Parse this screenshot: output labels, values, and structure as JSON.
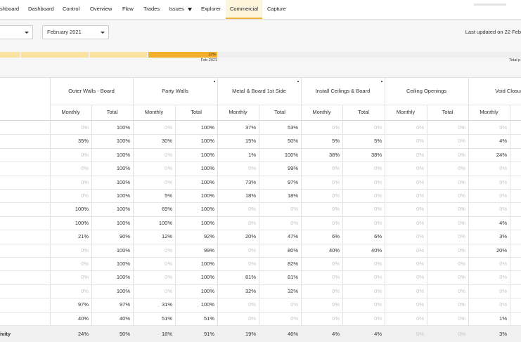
{
  "nav": {
    "items": [
      {
        "label": "shboard"
      },
      {
        "label": "Dashboard"
      },
      {
        "label": "Control"
      },
      {
        "label": "Overview"
      },
      {
        "label": "Flow"
      },
      {
        "label": "Trades"
      },
      {
        "label": "Issues",
        "dropdown": true
      },
      {
        "label": "Explorer"
      },
      {
        "label": "Commercial",
        "active": true
      },
      {
        "label": "Capture"
      }
    ]
  },
  "filters": {
    "period": "February 2021"
  },
  "last_updated": "Last updated on 22 Feb",
  "progress": {
    "marker_label": "12%",
    "period_label": "Feb 2021",
    "total_label": "Total p"
  },
  "table": {
    "groups": [
      "Outer Walls - Board",
      "Party Walls",
      "Metal & Board 1st Side",
      "Install Ceilings & Board",
      "Ceiling Openings",
      "Void Closure"
    ],
    "subheaders": [
      "Monthly",
      "Total"
    ],
    "rows": [
      [
        "0%",
        "100%",
        "0%",
        "100%",
        "37%",
        "53%",
        "0%",
        "0%",
        "0%",
        "0%",
        "0%"
      ],
      [
        "35%",
        "100%",
        "30%",
        "100%",
        "15%",
        "50%",
        "5%",
        "5%",
        "0%",
        "0%",
        "4%"
      ],
      [
        "0%",
        "100%",
        "0%",
        "100%",
        "1%",
        "100%",
        "38%",
        "38%",
        "0%",
        "0%",
        "24%"
      ],
      [
        "0%",
        "100%",
        "0%",
        "100%",
        "0%",
        "99%",
        "0%",
        "0%",
        "0%",
        "0%",
        "0%"
      ],
      [
        "0%",
        "100%",
        "0%",
        "100%",
        "73%",
        "97%",
        "0%",
        "0%",
        "0%",
        "0%",
        "0%"
      ],
      [
        "0%",
        "100%",
        "5%",
        "100%",
        "18%",
        "18%",
        "0%",
        "0%",
        "0%",
        "0%",
        "0%"
      ],
      [
        "100%",
        "100%",
        "69%",
        "100%",
        "0%",
        "0%",
        "0%",
        "0%",
        "0%",
        "0%",
        "0%"
      ],
      [
        "100%",
        "100%",
        "100%",
        "100%",
        "0%",
        "0%",
        "0%",
        "0%",
        "0%",
        "0%",
        "4%"
      ],
      [
        "21%",
        "90%",
        "12%",
        "92%",
        "20%",
        "47%",
        "6%",
        "6%",
        "0%",
        "0%",
        "3%"
      ],
      [
        "0%",
        "100%",
        "0%",
        "99%",
        "0%",
        "80%",
        "40%",
        "40%",
        "0%",
        "0%",
        "20%"
      ],
      [
        "0%",
        "100%",
        "0%",
        "100%",
        "0%",
        "82%",
        "0%",
        "0%",
        "0%",
        "0%",
        "0%"
      ],
      [
        "0%",
        "100%",
        "0%",
        "100%",
        "81%",
        "81%",
        "0%",
        "0%",
        "0%",
        "0%",
        "0%"
      ],
      [
        "0%",
        "100%",
        "0%",
        "100%",
        "32%",
        "32%",
        "0%",
        "0%",
        "0%",
        "0%",
        "0%"
      ],
      [
        "97%",
        "97%",
        "31%",
        "100%",
        "0%",
        "0%",
        "0%",
        "0%",
        "0%",
        "0%",
        "0%"
      ],
      [
        "40%",
        "40%",
        "51%",
        "51%",
        "0%",
        "0%",
        "0%",
        "0%",
        "0%",
        "0%",
        "1%"
      ]
    ],
    "total_row": {
      "label": "ivity",
      "cells": [
        "24%",
        "90%",
        "18%",
        "91%",
        "19%",
        "46%",
        "4%",
        "4%",
        "0%",
        "0%",
        "3%"
      ]
    }
  }
}
